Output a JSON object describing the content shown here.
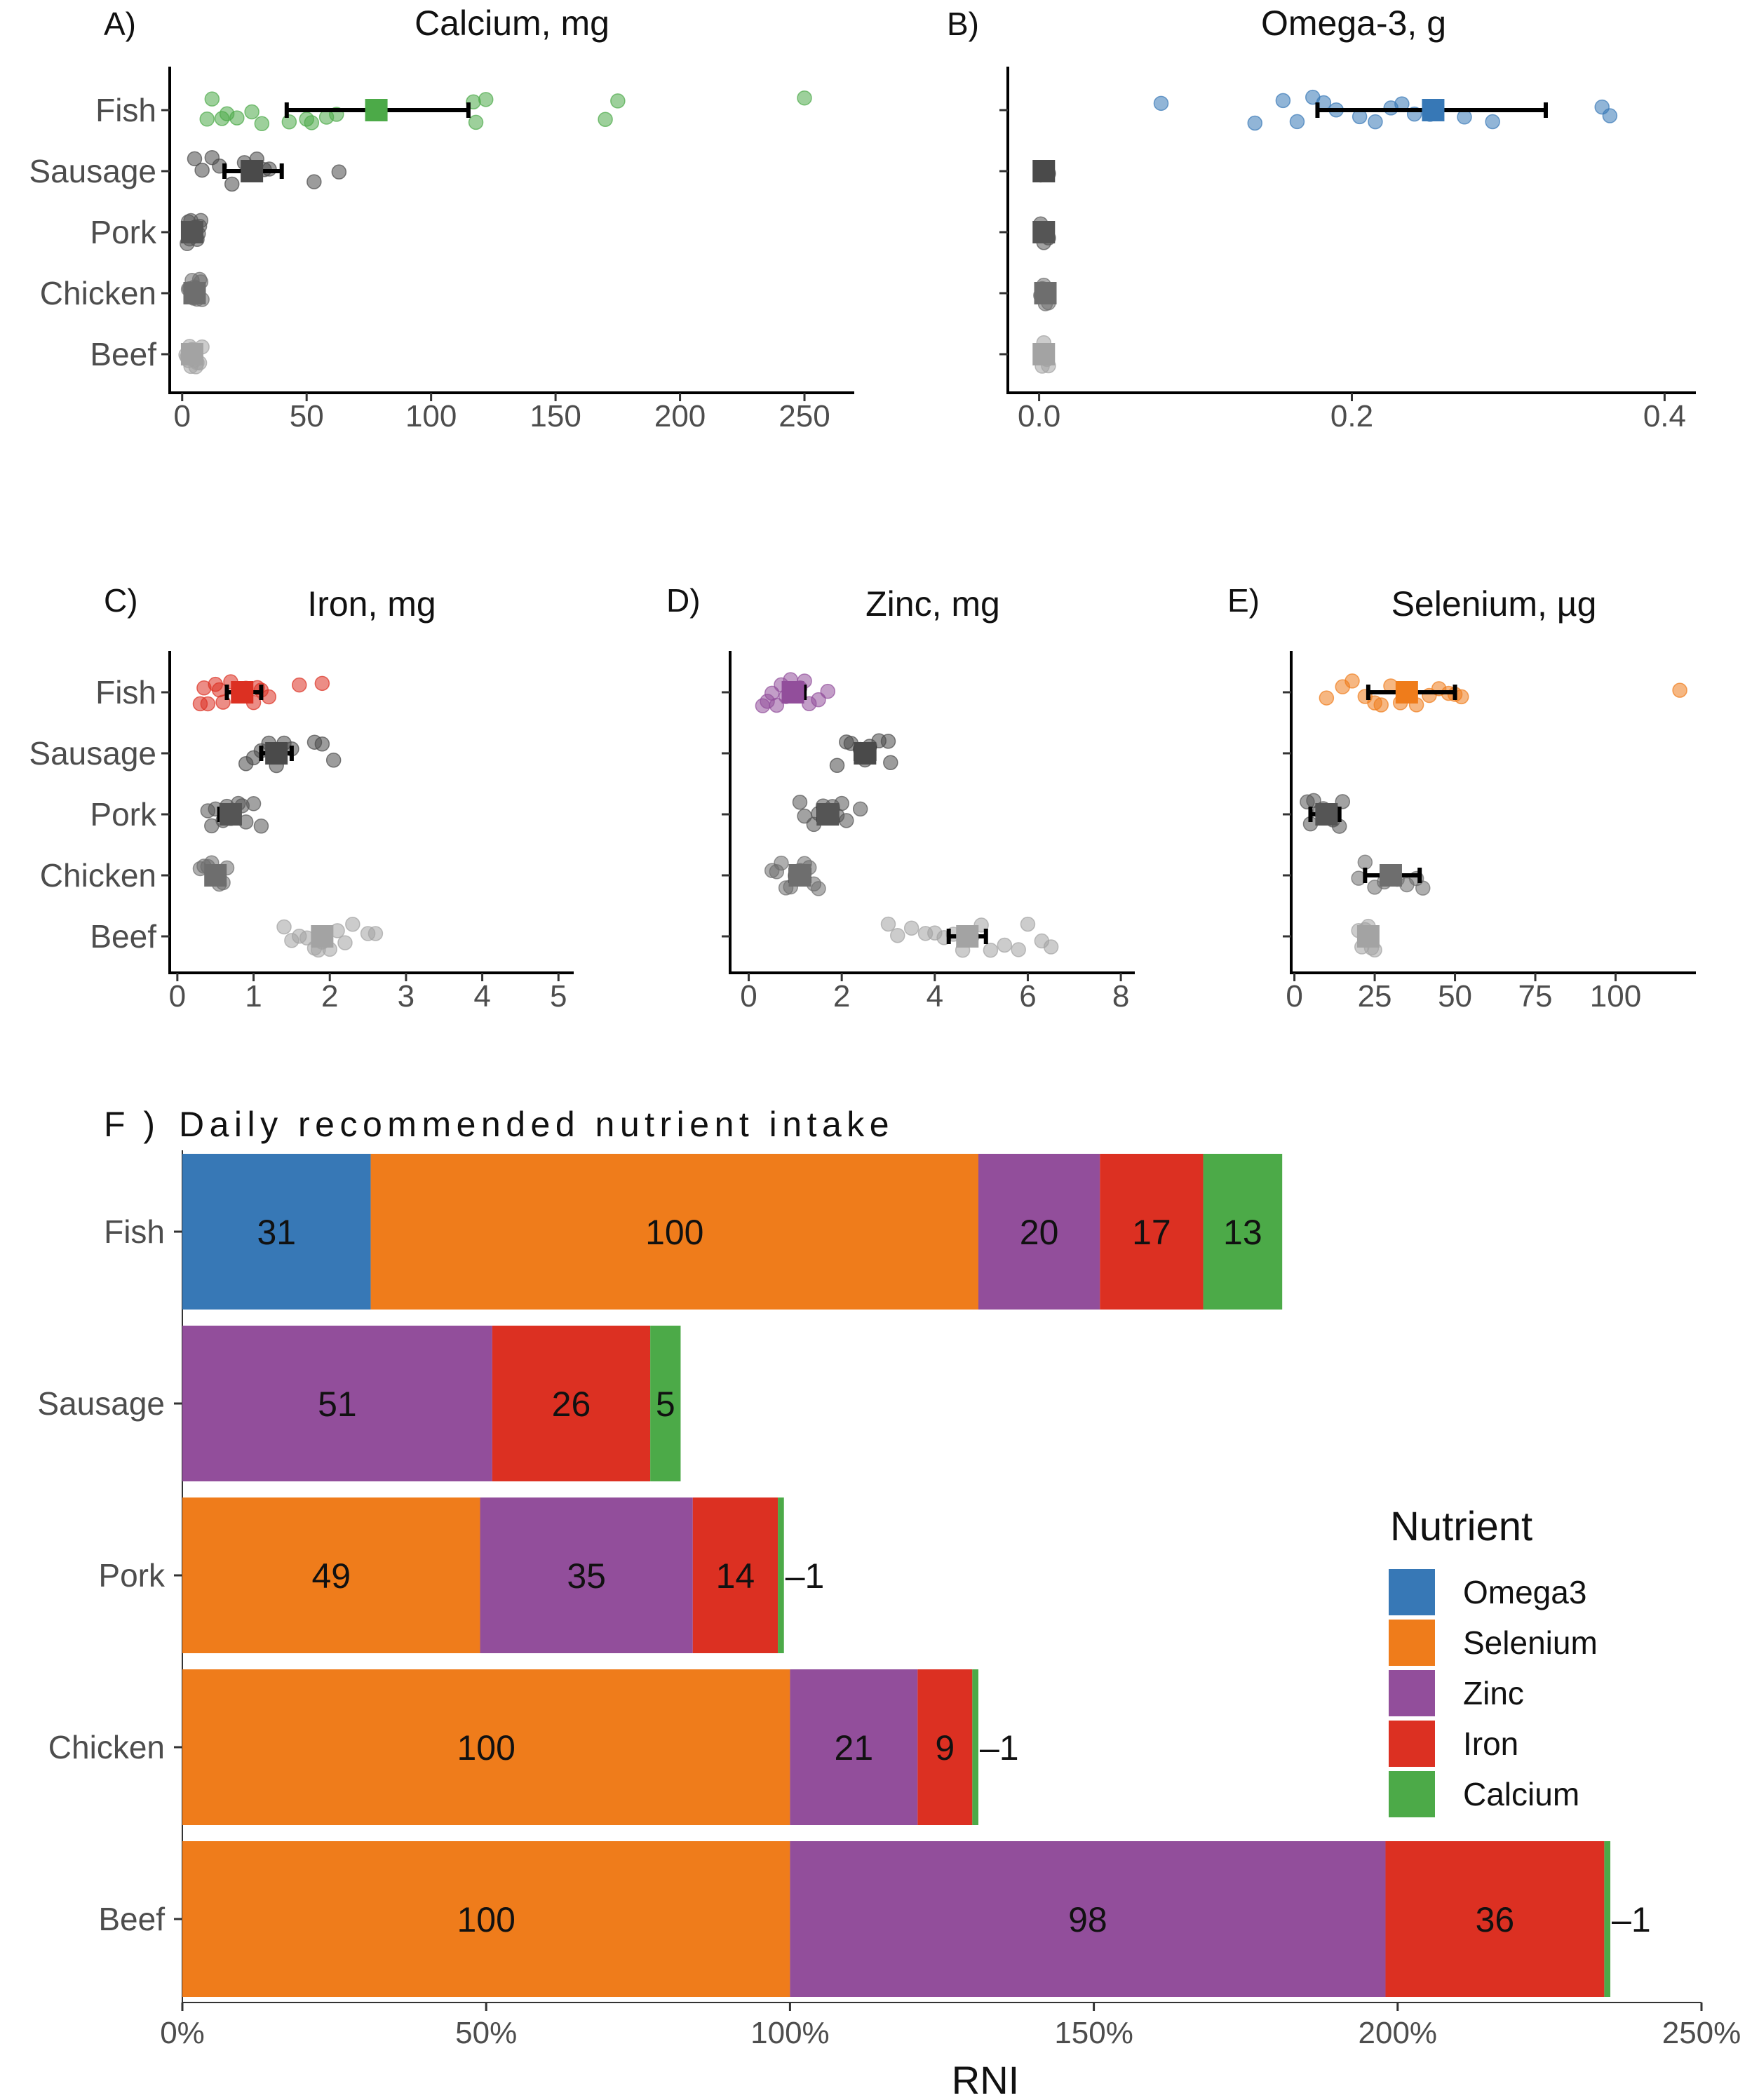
{
  "colors": {
    "Omega3": "#3778b6",
    "Selenium": "#ef7c1b",
    "Zinc": "#924e9b",
    "Iron": "#dc3022",
    "Calcium": "#4caa48",
    "sausage": "#4a4a4a",
    "pork": "#555555",
    "chicken": "#6e6e6e",
    "beef": "#a3a3a3"
  },
  "chart_data": [
    {
      "panel": "A)",
      "type": "scatter",
      "title": "Calcium, mg",
      "highlight": "Calcium",
      "categories": [
        "Fish",
        "Sausage",
        "Pork",
        "Chicken",
        "Beef"
      ],
      "xticks": [
        0,
        50,
        100,
        150,
        200,
        250
      ],
      "xlim": [
        -5,
        270
      ],
      "summary": [
        {
          "category": "Fish",
          "mean": 78,
          "lo": 42,
          "hi": 115
        },
        {
          "category": "Sausage",
          "mean": 28,
          "lo": 17,
          "hi": 40
        },
        {
          "category": "Pork",
          "mean": 4,
          "lo": 3,
          "hi": 5
        },
        {
          "category": "Chicken",
          "mean": 5,
          "lo": 4,
          "hi": 6
        },
        {
          "category": "Beef",
          "mean": 4,
          "lo": 3,
          "hi": 5
        }
      ],
      "points": {
        "Fish": [
          10,
          12,
          16,
          18,
          22,
          28,
          32,
          43,
          50,
          52,
          58,
          62,
          117,
          118,
          122,
          170,
          175,
          250
        ],
        "Sausage": [
          5,
          8,
          12,
          15,
          20,
          25,
          30,
          33,
          35,
          53,
          63
        ],
        "Pork": [
          2,
          2.5,
          3,
          3.5,
          4,
          4.5,
          5,
          5.5,
          6,
          6.5,
          7,
          7.5
        ],
        "Chicken": [
          2.5,
          3,
          3.5,
          4,
          4.5,
          5,
          5.5,
          6,
          6.5,
          7,
          7.5,
          8
        ],
        "Beef": [
          1.5,
          2,
          2.5,
          3,
          3.5,
          4,
          4.5,
          5,
          5.5,
          6,
          7,
          8
        ]
      }
    },
    {
      "panel": "B)",
      "type": "scatter",
      "title": "Omega-3, g",
      "highlight": "Omega3",
      "categories": [
        "Fish",
        "Sausage",
        "Pork",
        "Chicken",
        "Beef"
      ],
      "xticks": [
        "0.0",
        "0.2",
        "0.4"
      ],
      "xlim": [
        -0.02,
        0.42
      ],
      "summary": [
        {
          "category": "Fish",
          "mean": 0.252,
          "lo": 0.178,
          "hi": 0.324
        },
        {
          "category": "Sausage",
          "mean": 0.003,
          "lo": 0.002,
          "hi": 0.004
        },
        {
          "category": "Pork",
          "mean": 0.003,
          "lo": 0.002,
          "hi": 0.004
        },
        {
          "category": "Chicken",
          "mean": 0.004,
          "lo": 0.003,
          "hi": 0.005
        },
        {
          "category": "Beef",
          "mean": 0.003,
          "lo": 0.002,
          "hi": 0.004
        }
      ],
      "points": {
        "Fish": [
          0.078,
          0.138,
          0.156,
          0.165,
          0.175,
          0.182,
          0.19,
          0.205,
          0.215,
          0.225,
          0.232,
          0.24,
          0.25,
          0.272,
          0.29,
          0.36,
          0.365
        ],
        "Sausage": [
          0.001,
          0.002,
          0.003,
          0.004,
          0.005,
          0.006
        ],
        "Pork": [
          0.001,
          0.002,
          0.003,
          0.004,
          0.005,
          0.006
        ],
        "Chicken": [
          0.001,
          0.002,
          0.003,
          0.004,
          0.005,
          0.006
        ],
        "Beef": [
          0.001,
          0.002,
          0.003,
          0.004,
          0.005,
          0.006
        ]
      }
    },
    {
      "panel": "C)",
      "type": "scatter",
      "title": "Iron, mg",
      "highlight": "Iron",
      "categories": [
        "Fish",
        "Sausage",
        "Pork",
        "Chicken",
        "Beef"
      ],
      "xticks": [
        0,
        1,
        2,
        3,
        4,
        5
      ],
      "xlim": [
        -0.1,
        5.2
      ],
      "summary": [
        {
          "category": "Fish",
          "mean": 0.85,
          "lo": 0.65,
          "hi": 1.1
        },
        {
          "category": "Sausage",
          "mean": 1.3,
          "lo": 1.1,
          "hi": 1.5
        },
        {
          "category": "Pork",
          "mean": 0.7,
          "lo": 0.55,
          "hi": 0.8
        },
        {
          "category": "Chicken",
          "mean": 0.5,
          "lo": 0.45,
          "hi": 0.55
        },
        {
          "category": "Beef",
          "mean": 1.9,
          "lo": 1.8,
          "hi": 2.0
        }
      ],
      "points": {
        "Fish": [
          0.3,
          0.35,
          0.4,
          0.5,
          0.55,
          0.6,
          0.7,
          0.8,
          0.9,
          1.0,
          1.05,
          1.1,
          1.2,
          1.6,
          1.9
        ],
        "Sausage": [
          0.9,
          1.0,
          1.1,
          1.2,
          1.3,
          1.4,
          1.5,
          1.8,
          1.9,
          2.05
        ],
        "Pork": [
          0.4,
          0.45,
          0.5,
          0.6,
          0.65,
          0.7,
          0.8,
          0.85,
          0.9,
          1.0,
          1.1
        ],
        "Chicken": [
          0.3,
          0.35,
          0.4,
          0.45,
          0.5,
          0.55,
          0.6,
          0.65
        ],
        "Beef": [
          1.4,
          1.5,
          1.6,
          1.7,
          1.8,
          1.85,
          1.9,
          2.0,
          2.1,
          2.2,
          2.3,
          2.5,
          2.6
        ]
      }
    },
    {
      "panel": "D)",
      "type": "scatter",
      "title": "Zinc, mg",
      "highlight": "Zinc",
      "categories": [
        "Fish",
        "Sausage",
        "Pork",
        "Chicken",
        "Beef"
      ],
      "xticks": [
        0,
        2,
        4,
        6,
        8
      ],
      "xlim": [
        -0.4,
        8.3
      ],
      "summary": [
        {
          "category": "Fish",
          "mean": 0.95,
          "lo": 0.8,
          "hi": 1.2
        },
        {
          "category": "Sausage",
          "mean": 2.5,
          "lo": 2.3,
          "hi": 2.7
        },
        {
          "category": "Pork",
          "mean": 1.7,
          "lo": 1.5,
          "hi": 1.9
        },
        {
          "category": "Chicken",
          "mean": 1.1,
          "lo": 0.9,
          "hi": 1.3
        },
        {
          "category": "Beef",
          "mean": 4.7,
          "lo": 4.3,
          "hi": 5.1
        }
      ],
      "points": {
        "Fish": [
          0.3,
          0.4,
          0.5,
          0.6,
          0.7,
          0.8,
          0.9,
          1.0,
          1.1,
          1.2,
          1.3,
          1.5,
          1.7
        ],
        "Sausage": [
          1.9,
          2.1,
          2.2,
          2.4,
          2.5,
          2.6,
          2.8,
          3.0,
          3.05
        ],
        "Pork": [
          1.1,
          1.2,
          1.4,
          1.5,
          1.6,
          1.7,
          1.8,
          1.9,
          2.0,
          2.1,
          2.4
        ],
        "Chicken": [
          0.5,
          0.6,
          0.7,
          0.8,
          0.9,
          1.0,
          1.1,
          1.2,
          1.3,
          1.4,
          1.5
        ],
        "Beef": [
          3.0,
          3.2,
          3.5,
          3.8,
          4.0,
          4.2,
          4.4,
          4.6,
          4.8,
          5.0,
          5.2,
          5.5,
          5.8,
          6.0,
          6.3,
          6.5
        ]
      }
    },
    {
      "panel": "E)",
      "type": "scatter",
      "title": "Selenium, µg",
      "highlight": "Selenium",
      "categories": [
        "Fish",
        "Sausage",
        "Pork",
        "Chicken",
        "Beef"
      ],
      "xticks": [
        0,
        25,
        50,
        75,
        100
      ],
      "xlim": [
        -1,
        125
      ],
      "summary": [
        {
          "category": "Fish",
          "mean": 35,
          "lo": 23,
          "hi": 50
        },
        {
          "category": "Sausage",
          "mean": null,
          "lo": null,
          "hi": null
        },
        {
          "category": "Pork",
          "mean": 10,
          "lo": 5,
          "hi": 14
        },
        {
          "category": "Chicken",
          "mean": 30,
          "lo": 22,
          "hi": 39
        },
        {
          "category": "Beef",
          "mean": 23,
          "lo": 21,
          "hi": 24
        }
      ],
      "points": {
        "Fish": [
          10,
          15,
          18,
          22,
          25,
          27,
          30,
          33,
          38,
          42,
          45,
          48,
          50,
          52,
          120
        ],
        "Sausage": [],
        "Pork": [
          4,
          5,
          6,
          8,
          9,
          10,
          12,
          14,
          15
        ],
        "Chicken": [
          20,
          22,
          25,
          28,
          30,
          32,
          35,
          38,
          40
        ],
        "Beef": [
          20,
          21,
          22,
          23,
          24,
          25
        ]
      }
    },
    {
      "panel": "F )",
      "type": "bar",
      "stacked": true,
      "orientation": "horizontal",
      "title": "Daily recommended nutrient intake",
      "xlabel": "RNI",
      "xticks": [
        "0%",
        "50%",
        "100%",
        "150%",
        "200%",
        "250%"
      ],
      "xlim": [
        0,
        250
      ],
      "categories": [
        "Fish",
        "Sausage",
        "Pork",
        "Chicken",
        "Beef"
      ],
      "legend_title": "Nutrient",
      "legend": [
        "Omega3",
        "Selenium",
        "Zinc",
        "Iron",
        "Calcium"
      ],
      "stack_order": [
        "Omega3",
        "Selenium",
        "Zinc",
        "Iron",
        "Calcium"
      ],
      "series": [
        {
          "name": "Omega3",
          "values": [
            31,
            0,
            0,
            0,
            0
          ]
        },
        {
          "name": "Selenium",
          "values": [
            100,
            0,
            49,
            100,
            100
          ]
        },
        {
          "name": "Zinc",
          "values": [
            20,
            51,
            35,
            21,
            98
          ]
        },
        {
          "name": "Iron",
          "values": [
            17,
            26,
            14,
            9,
            36
          ]
        },
        {
          "name": "Calcium",
          "values": [
            13,
            5,
            1,
            1,
            1
          ]
        }
      ],
      "labels": {
        "Fish": [
          "31",
          "100",
          "20",
          "17",
          "13"
        ],
        "Sausage": [
          "",
          "",
          "51",
          "26",
          "5"
        ],
        "Pork": [
          "",
          "49",
          "35",
          "14",
          "–1"
        ],
        "Chicken": [
          "",
          "100",
          "21",
          "9",
          "–1"
        ],
        "Beef": [
          "",
          "100",
          "98",
          "36",
          "–1"
        ]
      }
    }
  ]
}
